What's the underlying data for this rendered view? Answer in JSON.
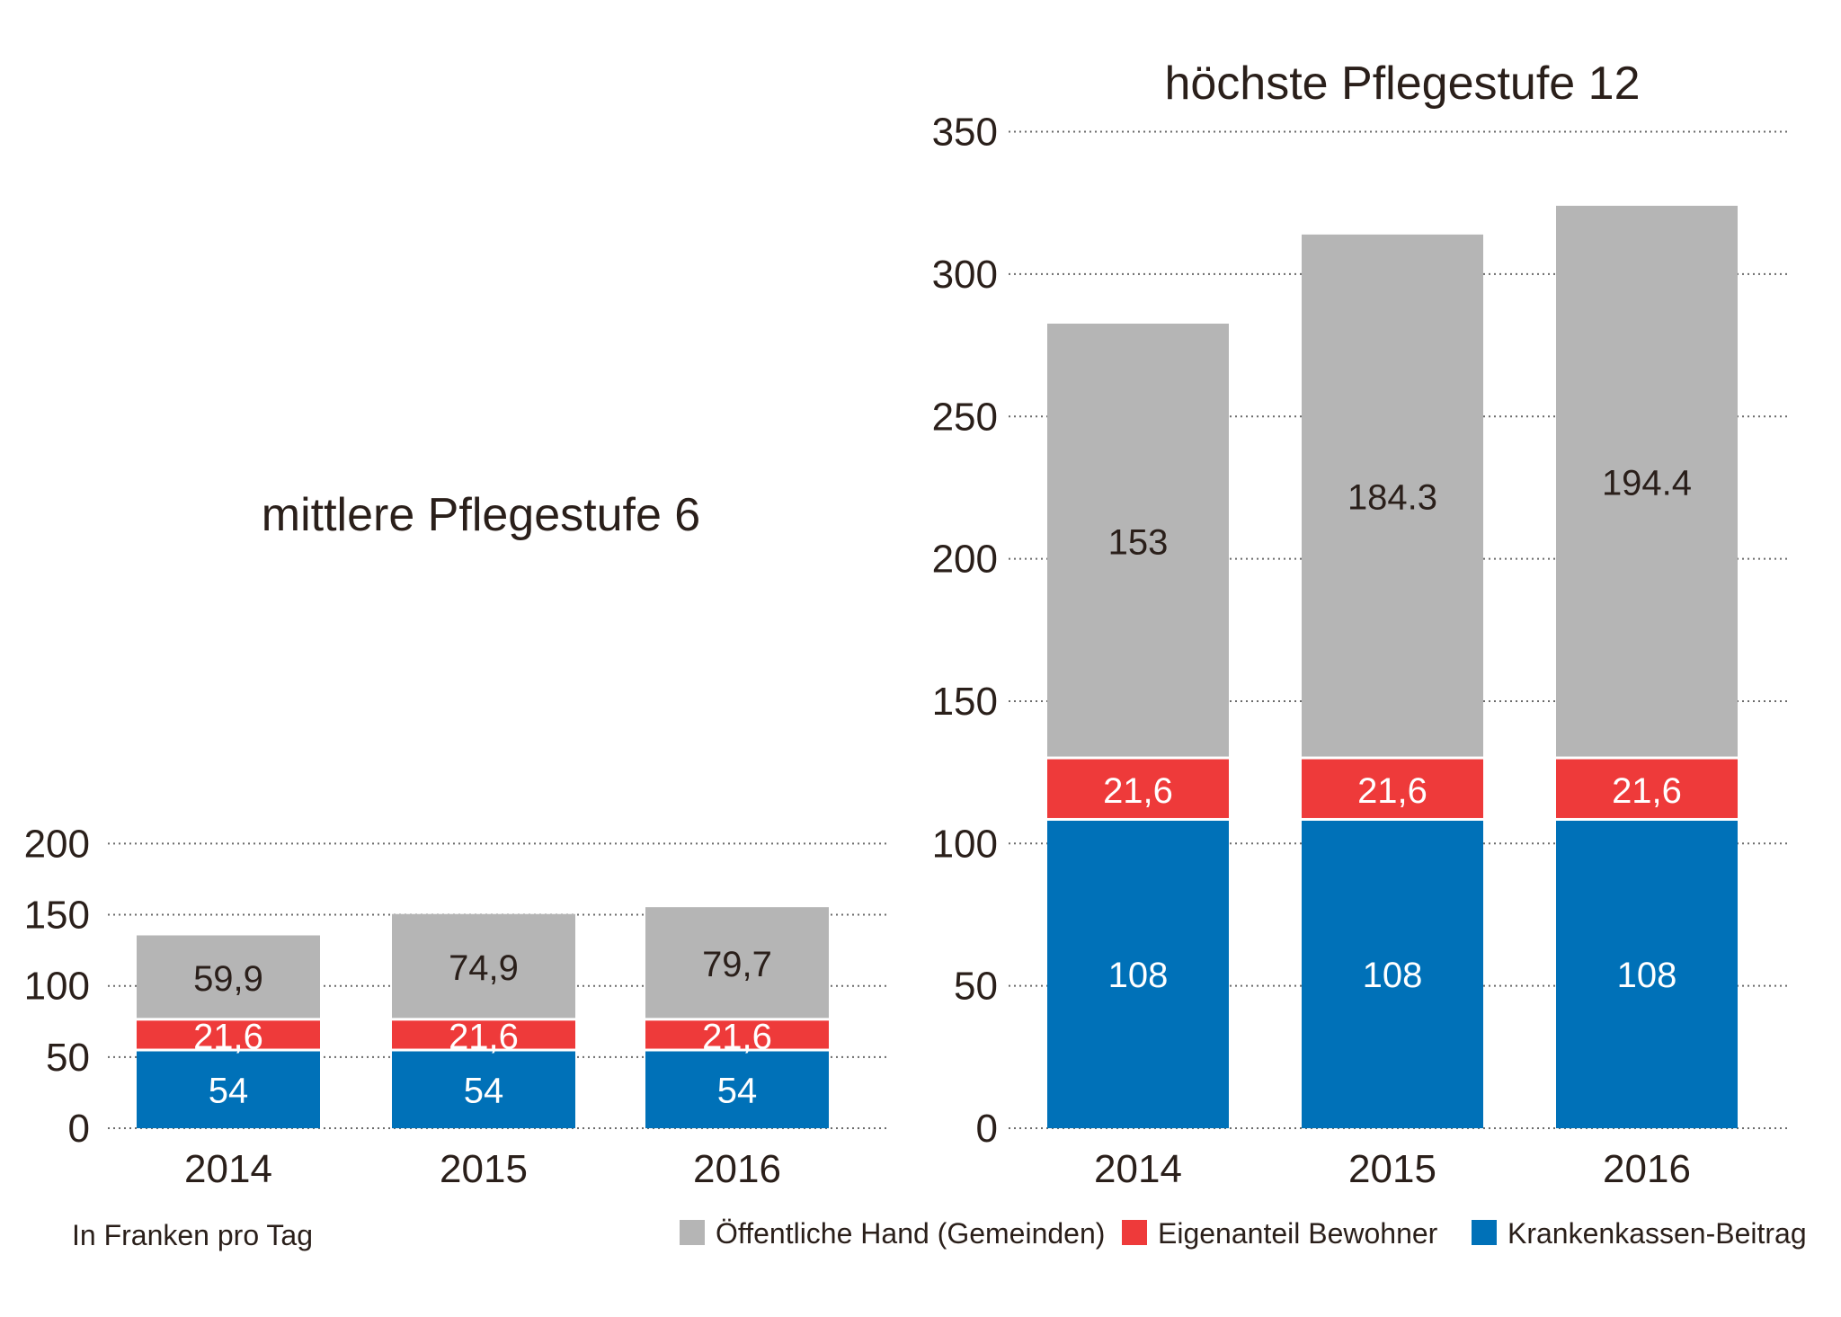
{
  "chart_data": [
    {
      "type": "bar",
      "stacked": true,
      "title": "mittlere Pflegestufe 6",
      "categories": [
        "2014",
        "2015",
        "2016"
      ],
      "ylim": [
        0,
        200
      ],
      "yticks": [
        0,
        50,
        100,
        150,
        200
      ],
      "grid": true,
      "series": [
        {
          "name": "Krankenkassen-Beitrag",
          "values": [
            54,
            54,
            54
          ],
          "labels": [
            "54",
            "54",
            "54"
          ]
        },
        {
          "name": "Eigenanteil Bewohner",
          "values": [
            21.6,
            21.6,
            21.6
          ],
          "labels": [
            "21,6",
            "21,6",
            "21,6"
          ]
        },
        {
          "name": "Öffentliche Hand (Gemeinden)",
          "values": [
            59.9,
            74.9,
            79.7
          ],
          "labels": [
            "59,9",
            "74,9",
            "79,7"
          ]
        }
      ]
    },
    {
      "type": "bar",
      "stacked": true,
      "title": "höchste Pflegestufe 12",
      "categories": [
        "2014",
        "2015",
        "2016"
      ],
      "ylim": [
        0,
        350
      ],
      "yticks": [
        0,
        50,
        100,
        150,
        200,
        250,
        300,
        350
      ],
      "grid": true,
      "series": [
        {
          "name": "Krankenkassen-Beitrag",
          "values": [
            108,
            108,
            108
          ],
          "labels": [
            "108",
            "108",
            "108"
          ]
        },
        {
          "name": "Eigenanteil Bewohner",
          "values": [
            21.6,
            21.6,
            21.6
          ],
          "labels": [
            "21,6",
            "21,6",
            "21,6"
          ]
        },
        {
          "name": "Öffentliche Hand (Gemeinden)",
          "values": [
            153,
            184.3,
            194.4
          ],
          "labels": [
            "153",
            "184.3",
            "194.4"
          ]
        }
      ]
    }
  ],
  "note": "In Franken pro Tag",
  "legend": [
    {
      "label": "Öffentliche Hand (Gemeinden)",
      "color": "#b5b5b5"
    },
    {
      "label": "Eigenanteil Bewohner",
      "color": "#ee3a3a"
    },
    {
      "label": "Krankenkassen-Beitrag",
      "color": "#0071b8"
    }
  ],
  "colors": {
    "Krankenkassen-Beitrag": "#0071b8",
    "Eigenanteil Bewohner": "#ee3a3a",
    "Öffentliche Hand (Gemeinden)": "#b5b5b5",
    "text": "#2a1f1a",
    "grid": "#6a6a6a"
  }
}
